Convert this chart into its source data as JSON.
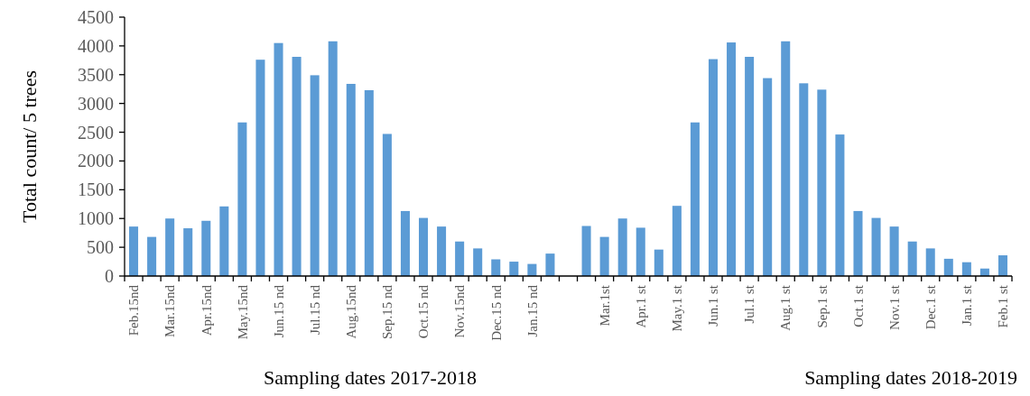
{
  "chart_data": {
    "type": "bar",
    "ylabel": "Total count/ 5 trees",
    "xlabel": "Sampling dates 2017-2018",
    "annotations": [
      "Sampling dates 2018-2019"
    ],
    "categories": [
      "Feb.15nd",
      null,
      "Mar.15nd",
      null,
      "Apr.15nd",
      null,
      "May.15nd",
      null,
      "Jun.15 nd",
      null,
      "Jul.15 nd",
      null,
      "Aug.15nd",
      null,
      "Sep.15 nd",
      null,
      "Oct.15 nd",
      null,
      "Nov.15nd",
      null,
      "Dec.15 nd",
      null,
      "Jan.15 nd",
      null,
      null,
      null,
      "Mar.1st",
      null,
      "Apr.1 st",
      null,
      "May.1 st",
      null,
      "Jun.1 st",
      null,
      "Jul.1 st",
      null,
      "Aug.1 st",
      null,
      "Sep.1 st",
      null,
      "Oct.1 st",
      null,
      "Nov.1 st",
      null,
      "Dec.1 st",
      null,
      "Jan.1 st",
      null,
      "Feb.1 st"
    ],
    "values": [
      860,
      680,
      1000,
      830,
      960,
      1210,
      2670,
      3760,
      4050,
      3810,
      3490,
      4080,
      3340,
      3230,
      2470,
      1130,
      1010,
      860,
      600,
      480,
      290,
      250,
      210,
      390,
      null,
      870,
      680,
      1000,
      840,
      460,
      1220,
      2670,
      3770,
      4060,
      3810,
      3440,
      4080,
      3350,
      3240,
      2460,
      1130,
      1010,
      860,
      600,
      480,
      300,
      240,
      130,
      360
    ],
    "color": "#5b9bd5",
    "ylim": [
      0,
      4500
    ],
    "yticks": [
      0,
      500,
      1000,
      1500,
      2000,
      2500,
      3000,
      3500,
      4000,
      4500
    ],
    "grid": false
  }
}
